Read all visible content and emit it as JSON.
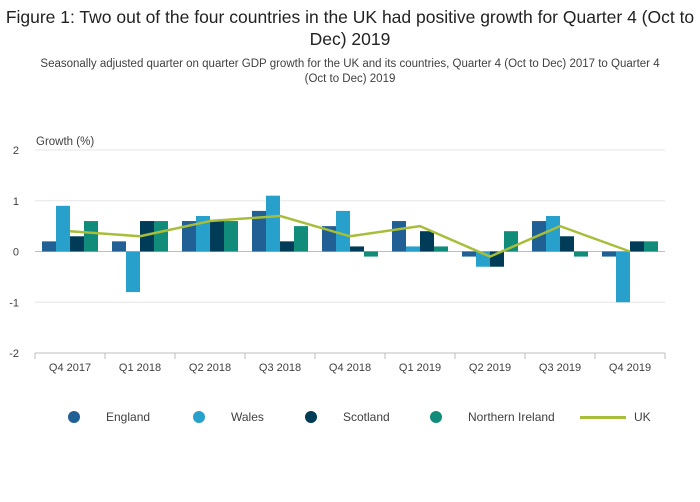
{
  "chart_data": {
    "type": "bar",
    "title": "Figure 1: Two out of the four countries in the UK had positive growth for Quarter 4 (Oct to Dec) 2019",
    "subtitle": "Seasonally adjusted quarter on quarter GDP growth for the UK and its countries, Quarter 4 (Oct to Dec) 2017 to Quarter 4 (Oct to Dec) 2019",
    "ylabel": "Growth (%)",
    "xlabel": "",
    "ylim": [
      -2,
      2
    ],
    "yticks": [
      "2",
      "1",
      "0",
      "-1",
      "-2"
    ],
    "grid": true,
    "legend_position": "bottom",
    "categories": [
      "Q4 2017",
      "Q1 2018",
      "Q2 2018",
      "Q3 2018",
      "Q4 2018",
      "Q1 2019",
      "Q2 2019",
      "Q3 2019",
      "Q4 2019"
    ],
    "series": [
      {
        "name": "England",
        "type": "bar",
        "color": "#206095",
        "values": [
          0.2,
          0.2,
          0.6,
          0.8,
          0.5,
          0.6,
          -0.1,
          0.6,
          -0.1
        ]
      },
      {
        "name": "Wales",
        "type": "bar",
        "color": "#27a0cc",
        "values": [
          0.9,
          -0.8,
          0.7,
          1.1,
          0.8,
          0.1,
          -0.3,
          0.7,
          -1.0
        ]
      },
      {
        "name": "Scotland",
        "type": "bar",
        "color": "#003c57",
        "values": [
          0.3,
          0.6,
          0.6,
          0.2,
          0.1,
          0.4,
          -0.3,
          0.3,
          0.2
        ]
      },
      {
        "name": "Northern Ireland",
        "type": "bar",
        "color": "#118c7b",
        "values": [
          0.6,
          0.6,
          0.6,
          0.5,
          -0.1,
          0.1,
          0.4,
          -0.1,
          0.2
        ]
      },
      {
        "name": "UK",
        "type": "line",
        "color": "#a8bd3a",
        "values": [
          0.4,
          0.3,
          0.6,
          0.7,
          0.3,
          0.5,
          -0.1,
          0.5,
          0.0
        ]
      }
    ]
  }
}
